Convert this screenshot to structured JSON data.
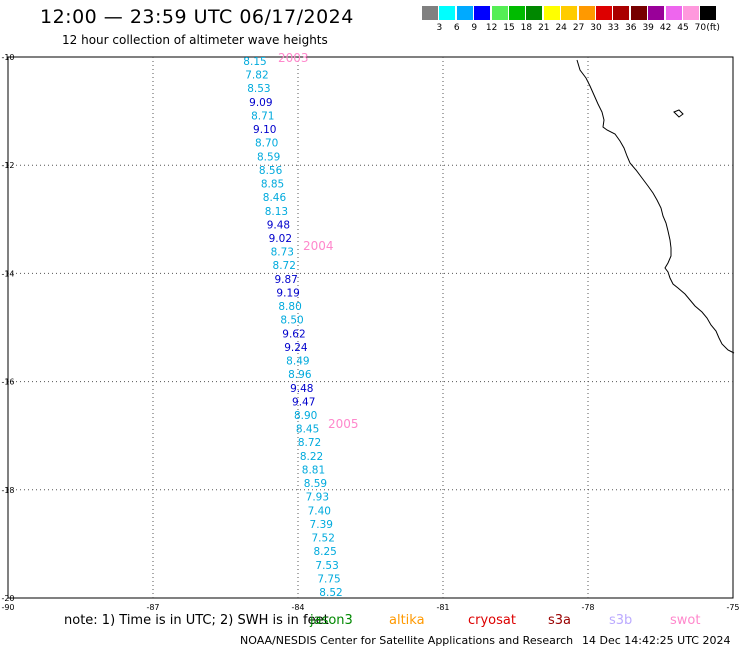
{
  "header": {
    "title": "12:00 — 23:59 UTC 06/17/2024",
    "subtitle": "12 hour collection of altimeter wave heights"
  },
  "legend": {
    "colors": [
      "#808080",
      "#00ffff",
      "#00aaff",
      "#0000ff",
      "#55ee55",
      "#00bb00",
      "#008800",
      "#ffff00",
      "#ffcc00",
      "#ff9900",
      "#dd0000",
      "#aa0000",
      "#770000",
      "#990099",
      "#ee66ee",
      "#ff99dd",
      "#000000"
    ],
    "ticks": [
      "3",
      "6",
      "9",
      "12",
      "15",
      "18",
      "21",
      "24",
      "27",
      "30",
      "33",
      "36",
      "39",
      "42",
      "45",
      "70",
      "(ft)"
    ]
  },
  "axes": {
    "lon_labels": [
      "-90",
      "-87",
      "-84",
      "-81",
      "-78",
      "-75"
    ],
    "lat_labels": [
      "-10",
      "-12",
      "-14",
      "-16",
      "-18",
      "-20"
    ],
    "lon_range": [
      -90,
      -75
    ],
    "lat_range": [
      -10,
      -20
    ]
  },
  "track": {
    "wave_heights": [
      "8.15",
      "7.82",
      "8.53",
      "9.09",
      "8.71",
      "9.10",
      "8.70",
      "8.59",
      "8.56",
      "8.85",
      "8.46",
      "8.13",
      "9.48",
      "9.02",
      "8.73",
      "8.72",
      "9.87",
      "9.19",
      "8.80",
      "8.50",
      "9.62",
      "9.24",
      "8.49",
      "8.96",
      "9.48",
      "9.47",
      "8.90",
      "8.45",
      "8.72",
      "8.22",
      "8.81",
      "8.59",
      "7.93",
      "7.40",
      "7.39",
      "7.52",
      "8.25",
      "7.53",
      "7.75",
      "8.52"
    ],
    "year_labels": [
      "2003",
      "2004",
      "2005"
    ],
    "color_light": "#00aadd",
    "color_dark": "#0000cc"
  },
  "footer": {
    "note": "note:  1) Time is in UTC; 2) SWH is in feet",
    "satellites": [
      {
        "name": "jason3",
        "color": "#008800"
      },
      {
        "name": "altika",
        "color": "#ff9900"
      },
      {
        "name": "cryosat",
        "color": "#dd0000"
      },
      {
        "name": "s3a",
        "color": "#990000"
      },
      {
        "name": "s3b",
        "color": "#bbaaff"
      },
      {
        "name": "swot",
        "color": "#ff88cc"
      }
    ],
    "credit": "NOAA/NESDIS Center for Satellite Applications and Research",
    "timestamp": "14 Dec 14:42:25 UTC 2024"
  }
}
